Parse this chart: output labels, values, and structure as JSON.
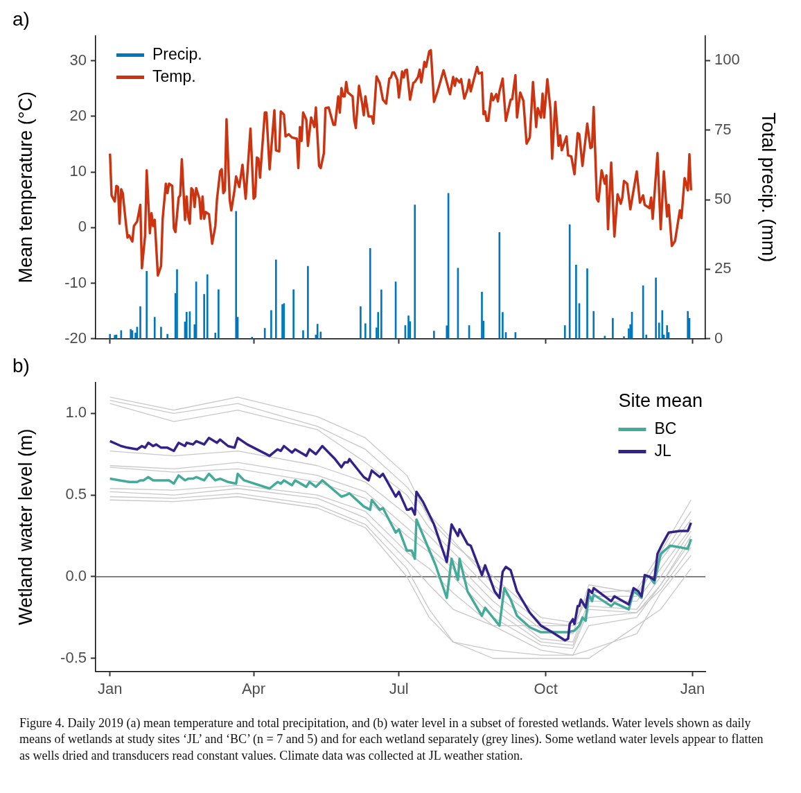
{
  "chart_data": [
    {
      "type": "line",
      "title": "a)",
      "ylabel": "Mean temperature (°C)",
      "y2label": "Total precip. (mm)",
      "xlim": [
        "2018-12-23",
        "2020-01-09"
      ],
      "xticks": [
        {
          "value": "2019-01-01",
          "label": null
        },
        {
          "value": "2019-04-01",
          "label": null
        },
        {
          "value": "2019-07-01",
          "label": null
        },
        {
          "value": "2019-10-01",
          "label": null
        },
        {
          "value": "2020-01-01",
          "label": null
        }
      ],
      "ylim": [
        -20,
        34.5
      ],
      "yticks": [
        -20,
        -10,
        0,
        10,
        20,
        30
      ],
      "y2lim": [
        0,
        108.9
      ],
      "y2ticks": [
        0,
        25,
        50,
        75,
        100
      ],
      "tick_labels": "y",
      "legend": "top left",
      "marker": "none",
      "line_style": "solid",
      "series": [
        {
          "name": "Precip.",
          "type": "bar",
          "axis": "y2",
          "color": "#0077bb",
          "x": [
            "2019-01-01",
            "2019-01-04",
            "2019-01-05",
            "2019-01-08",
            "2019-01-14",
            "2019-01-15",
            "2019-01-17",
            "2019-01-18",
            "2019-01-20",
            "2019-01-24",
            "2019-01-29",
            "2019-02-02",
            "2019-02-06",
            "2019-02-11",
            "2019-02-12",
            "2019-02-17",
            "2019-02-18",
            "2019-02-20",
            "2019-02-23",
            "2019-02-24",
            "2019-03-01",
            "2019-03-03",
            "2019-03-08",
            "2019-03-10",
            "2019-03-21",
            "2019-03-22",
            "2019-03-31",
            "2019-04-08",
            "2019-04-12",
            "2019-04-15",
            "2019-04-19",
            "2019-04-20",
            "2019-04-26",
            "2019-05-02",
            "2019-05-05",
            "2019-05-10",
            "2019-05-11",
            "2019-05-13",
            "2019-06-07",
            "2019-06-10",
            "2019-06-13",
            "2019-06-17",
            "2019-06-18",
            "2019-06-20",
            "2019-06-29",
            "2019-07-05",
            "2019-07-07",
            "2019-07-08",
            "2019-07-11",
            "2019-07-23",
            "2019-07-31",
            "2019-08-01",
            "2019-08-07",
            "2019-08-14",
            "2019-08-22",
            "2019-08-23",
            "2019-09-02",
            "2019-09-04",
            "2019-09-06",
            "2019-09-12",
            "2019-10-13",
            "2019-10-16",
            "2019-10-20",
            "2019-10-22",
            "2019-10-27",
            "2019-10-31",
            "2019-11-07",
            "2019-11-12",
            "2019-11-19",
            "2019-11-22",
            "2019-11-23",
            "2019-11-24",
            "2019-12-01",
            "2019-12-03",
            "2019-12-09",
            "2019-12-11",
            "2019-12-13",
            "2019-12-14",
            "2019-12-16",
            "2019-12-17",
            "2019-12-29",
            "2019-12-30"
          ],
          "values": [
            1.7,
            1.3,
            1.4,
            3.0,
            3.4,
            3.0,
            2.1,
            4.2,
            11.6,
            24.3,
            7.8,
            4.2,
            1.7,
            16.3,
            24.9,
            6.1,
            9.6,
            9.8,
            5.1,
            20.5,
            16.0,
            23.1,
            2.1,
            17.7,
            45.8,
            7.8,
            0.6,
            3.8,
            10.2,
            28.4,
            12.3,
            12.7,
            17.7,
            3.0,
            26.1,
            1.4,
            5.3,
            2.5,
            11.6,
            5.5,
            32.5,
            4.0,
            9.5,
            17.6,
            20.5,
            4.8,
            8.3,
            6.2,
            48.1,
            2.8,
            4.7,
            52.3,
            25.4,
            4.8,
            16.8,
            6.4,
            38.2,
            9.5,
            2.3,
            2.3,
            4.8,
            41.0,
            26.5,
            12.7,
            25.2,
            9.9,
            1.0,
            7.4,
            0.8,
            3.6,
            5.1,
            9.6,
            19.1,
            1.4,
            21.9,
            5.7,
            10.2,
            1.4,
            4.8,
            2.3,
            9.9,
            7.4
          ]
        },
        {
          "name": "Temp.",
          "color": "#cc3311",
          "x": [
            "2019-01-01",
            "2019-01-02",
            "2019-01-04",
            "2019-01-05",
            "2019-01-06",
            "2019-01-07",
            "2019-01-08",
            "2019-01-09",
            "2019-01-11",
            "2019-01-12",
            "2019-01-13",
            "2019-01-15",
            "2019-01-16",
            "2019-01-18",
            "2019-01-20",
            "2019-01-21",
            "2019-01-23",
            "2019-01-24",
            "2019-01-26",
            "2019-01-27",
            "2019-01-28",
            "2019-01-29",
            "2019-01-31",
            "2019-02-02",
            "2019-02-03",
            "2019-02-05",
            "2019-02-06",
            "2019-02-07",
            "2019-02-09",
            "2019-02-10",
            "2019-02-11",
            "2019-02-13",
            "2019-02-14",
            "2019-02-15",
            "2019-02-17",
            "2019-02-18",
            "2019-02-19",
            "2019-02-20",
            "2019-02-21",
            "2019-02-22",
            "2019-02-23",
            "2019-02-24",
            "2019-02-26",
            "2019-02-27",
            "2019-02-28",
            "2019-03-01",
            "2019-03-02",
            "2019-03-04",
            "2019-03-06",
            "2019-03-08",
            "2019-03-09",
            "2019-03-11",
            "2019-03-12",
            "2019-03-13",
            "2019-03-14",
            "2019-03-15",
            "2019-03-17",
            "2019-03-18",
            "2019-03-20",
            "2019-03-21",
            "2019-03-23",
            "2019-03-25",
            "2019-03-27",
            "2019-03-30",
            "2019-04-01",
            "2019-04-02",
            "2019-04-03",
            "2019-04-04",
            "2019-04-05",
            "2019-04-08",
            "2019-04-09",
            "2019-04-11",
            "2019-04-14",
            "2019-04-15",
            "2019-04-17",
            "2019-04-18",
            "2019-04-20",
            "2019-04-21",
            "2019-04-23",
            "2019-04-25",
            "2019-04-28",
            "2019-04-29",
            "2019-04-30",
            "2019-05-01",
            "2019-05-02",
            "2019-05-04",
            "2019-05-05",
            "2019-05-07",
            "2019-05-09",
            "2019-05-10",
            "2019-05-12",
            "2019-05-13",
            "2019-05-15",
            "2019-05-16",
            "2019-05-18",
            "2019-05-21",
            "2019-05-22",
            "2019-05-24",
            "2019-05-25",
            "2019-05-26",
            "2019-05-27",
            "2019-05-28",
            "2019-05-29",
            "2019-05-30",
            "2019-06-02",
            "2019-06-03",
            "2019-06-04",
            "2019-06-06",
            "2019-06-08",
            "2019-06-09",
            "2019-06-10",
            "2019-06-12",
            "2019-06-14",
            "2019-06-15",
            "2019-06-17",
            "2019-06-19",
            "2019-06-21",
            "2019-06-23",
            "2019-06-25",
            "2019-06-26",
            "2019-06-27",
            "2019-06-28",
            "2019-06-30",
            "2019-07-01",
            "2019-07-03",
            "2019-07-04",
            "2019-07-05",
            "2019-07-06",
            "2019-07-08",
            "2019-07-10",
            "2019-07-11",
            "2019-07-13",
            "2019-07-14",
            "2019-07-15",
            "2019-07-17",
            "2019-07-18",
            "2019-07-20",
            "2019-07-21",
            "2019-07-23",
            "2019-07-25",
            "2019-07-29",
            "2019-08-02",
            "2019-08-04",
            "2019-08-05",
            "2019-08-06",
            "2019-08-08",
            "2019-08-09",
            "2019-08-11",
            "2019-08-13",
            "2019-08-14",
            "2019-08-15",
            "2019-08-19",
            "2019-08-20",
            "2019-08-22",
            "2019-08-23",
            "2019-08-24",
            "2019-08-25",
            "2019-08-26",
            "2019-08-28",
            "2019-08-29",
            "2019-08-31",
            "2019-09-01",
            "2019-09-02",
            "2019-09-04",
            "2019-09-06",
            "2019-09-09",
            "2019-09-10",
            "2019-09-12",
            "2019-09-13",
            "2019-09-15",
            "2019-09-17",
            "2019-09-19",
            "2019-09-21",
            "2019-09-23",
            "2019-09-25",
            "2019-09-26",
            "2019-09-28",
            "2019-09-29",
            "2019-09-30",
            "2019-10-02",
            "2019-10-04",
            "2019-10-05",
            "2019-10-07",
            "2019-10-09",
            "2019-10-10",
            "2019-10-11",
            "2019-10-14",
            "2019-10-15",
            "2019-10-17",
            "2019-10-19",
            "2019-10-21",
            "2019-10-22",
            "2019-10-24",
            "2019-10-27",
            "2019-10-29",
            "2019-10-30",
            "2019-10-31",
            "2019-11-02",
            "2019-11-03",
            "2019-11-05",
            "2019-11-07",
            "2019-11-08",
            "2019-11-09",
            "2019-11-11",
            "2019-11-13",
            "2019-11-15",
            "2019-11-17",
            "2019-11-18",
            "2019-11-19",
            "2019-11-21",
            "2019-11-23",
            "2019-11-25",
            "2019-11-27",
            "2019-11-29",
            "2019-12-01",
            "2019-12-02",
            "2019-12-05",
            "2019-12-06",
            "2019-12-07",
            "2019-12-10",
            "2019-12-12",
            "2019-12-14",
            "2019-12-16",
            "2019-12-17",
            "2019-12-19",
            "2019-12-21",
            "2019-12-24",
            "2019-12-25",
            "2019-12-27",
            "2019-12-29",
            "2019-12-30",
            "2019-12-31"
          ],
          "values": [
            13.3,
            5.8,
            4.7,
            7.5,
            7.3,
            0.7,
            6.9,
            6.2,
            0.7,
            -1.8,
            -1.4,
            -2.5,
            0.3,
            1.1,
            4.1,
            -7.3,
            -1.4,
            10.3,
            -1.0,
            2.6,
            0.3,
            1.4,
            -8.6,
            -6.9,
            1.6,
            7.9,
            6.2,
            7.9,
            7.5,
            -0.1,
            -0.8,
            5.4,
            5.8,
            12.3,
            1.4,
            5.6,
            2.0,
            0.7,
            7.1,
            6.7,
            3.7,
            7.1,
            5.2,
            1.6,
            5.6,
            1.6,
            2.8,
            2.4,
            -2.9,
            0.3,
            5.0,
            10.1,
            10.5,
            6.2,
            6.7,
            19.5,
            5.0,
            3.1,
            6.7,
            9.2,
            7.3,
            11.3,
            5.2,
            17.8,
            5.2,
            5.6,
            12.6,
            12.4,
            9.0,
            20.7,
            20.7,
            10.5,
            21.1,
            13.9,
            13.7,
            20.9,
            20.3,
            16.4,
            16.8,
            16.2,
            16.0,
            10.7,
            18.1,
            15.6,
            20.7,
            19.4,
            14.7,
            19.8,
            18.1,
            21.6,
            11.1,
            10.7,
            13.4,
            21.5,
            21.6,
            18.5,
            18.5,
            23.6,
            20.7,
            25.1,
            23.6,
            23.6,
            26.2,
            24.3,
            23.6,
            19.4,
            17.9,
            25.5,
            22.3,
            20.2,
            23.6,
            20.0,
            20.0,
            18.7,
            27.2,
            26.0,
            23.0,
            22.3,
            26.8,
            27.0,
            27.9,
            27.9,
            26.6,
            23.4,
            28.1,
            27.0,
            28.3,
            28.4,
            23.0,
            26.0,
            26.2,
            27.1,
            28.4,
            26.1,
            29.8,
            28.9,
            31.7,
            31.9,
            22.6,
            24.3,
            28.3,
            24.0,
            27.1,
            25.5,
            26.8,
            26.1,
            26.7,
            23.2,
            24.9,
            26.6,
            24.5,
            28.9,
            27.7,
            27.9,
            20.4,
            20.9,
            19.2,
            19.2,
            24.1,
            22.9,
            24.0,
            22.7,
            24.5,
            26.8,
            19.2,
            23.0,
            23.1,
            27.4,
            19.8,
            24.3,
            22.8,
            15.1,
            16.2,
            26.2,
            18.1,
            21.5,
            19.8,
            24.1,
            19.8,
            26.7,
            21.1,
            12.4,
            22.6,
            14.7,
            16.6,
            13.9,
            16.4,
            13.0,
            12.8,
            9.6,
            17.0,
            16.8,
            11.1,
            18.7,
            14.3,
            14.5,
            21.7,
            5.2,
            4.7,
            10.3,
            7.9,
            9.4,
            -0.3,
            11.7,
            -1.6,
            6.0,
            4.3,
            5.4,
            8.4,
            7.9,
            3.3,
            6.7,
            10.1,
            4.5,
            5.8,
            4.1,
            3.5,
            5.4,
            1.6,
            13.4,
            -0.3,
            10.1,
            2.0,
            4.1,
            -3.3,
            -2.4,
            3.1,
            1.7,
            8.9,
            6.7,
            13.2,
            6.7
          ]
        }
      ]
    },
    {
      "type": "line",
      "title": "b)",
      "ylabel": "Wetland water level (m)",
      "legend_title": "Site mean",
      "legend": "top right",
      "marker": "none",
      "line_style": "solid",
      "xlim": [
        "2018-12-23",
        "2020-01-09"
      ],
      "xticks": [
        {
          "value": "2019-01-01",
          "label": "Jan"
        },
        {
          "value": "2019-04-01",
          "label": "Apr"
        },
        {
          "value": "2019-07-01",
          "label": "Jul"
        },
        {
          "value": "2019-10-01",
          "label": "Oct"
        },
        {
          "value": "2020-01-01",
          "label": "Jan"
        }
      ],
      "ylim": [
        -0.58,
        1.19
      ],
      "yticks": [
        -0.5,
        {
          "value": 0,
          "label": "0.0"
        },
        0.5,
        {
          "value": 1,
          "label": "1.0"
        }
      ],
      "ref_lines": [
        {
          "axis": "y",
          "value": 0,
          "color": "#808080"
        }
      ],
      "annotations": [
        "Figure 4. Daily 2019 (a) mean temperature and total precipitation, and (b) water level in a subset of forested wetlands. Water levels shown as daily means of wetlands at study sites ‘JL’ and ‘BC’ (n = 7 and 5) and for each wetland separately (grey lines). Some wetland water levels appear to flatten as wells dried and transducers read constant values. Climate data was collected at JL weather station."
      ],
      "x": [
        "2019-01-01",
        "2019-02-10",
        "2019-03-22",
        "2019-05-11",
        "2019-06-10",
        "2019-07-06",
        "2019-07-20",
        "2019-08-04",
        "2019-08-29",
        "2019-09-28",
        "2019-10-18",
        "2019-10-28",
        "2019-11-27",
        "2019-12-12",
        "2019-12-31"
      ],
      "series": [
        {
          "color": "#c8c8c8",
          "values": [
            1.1,
            1.02,
            1.1,
            0.98,
            0.85,
            0.62,
            0.35,
            0.2,
            0.0,
            -0.25,
            -0.28,
            -0.1,
            -0.08,
            0.15,
            0.47
          ]
        },
        {
          "color": "#c8c8c8",
          "values": [
            1.08,
            1.0,
            1.06,
            0.92,
            0.78,
            0.55,
            0.38,
            0.22,
            -0.05,
            -0.28,
            -0.3,
            -0.12,
            -0.12,
            0.12,
            0.4
          ]
        },
        {
          "color": "#c8c8c8",
          "values": [
            1.06,
            0.95,
            1.02,
            0.9,
            0.7,
            0.5,
            0.3,
            0.15,
            -0.1,
            -0.32,
            -0.35,
            -0.05,
            -0.1,
            0.1,
            0.35
          ]
        },
        {
          "color": "#c8c8c8",
          "values": [
            0.77,
            0.74,
            0.77,
            0.68,
            0.58,
            0.38,
            0.25,
            0.1,
            -0.15,
            -0.38,
            -0.4,
            -0.15,
            -0.15,
            0.05,
            0.3
          ]
        },
        {
          "color": "#c8c8c8",
          "values": [
            0.68,
            0.66,
            0.7,
            0.62,
            0.52,
            0.3,
            0.18,
            0.05,
            -0.2,
            -0.4,
            -0.42,
            -0.18,
            -0.2,
            0.0,
            0.28
          ]
        },
        {
          "color": "#c8c8c8",
          "values": [
            0.67,
            0.64,
            0.66,
            0.58,
            0.48,
            0.25,
            0.15,
            0.0,
            -0.25,
            -0.42,
            -0.44,
            -0.2,
            -0.22,
            -0.05,
            0.25
          ]
        },
        {
          "color": "#c8c8c8",
          "values": [
            0.54,
            0.53,
            0.56,
            0.5,
            0.4,
            0.15,
            0.05,
            -0.1,
            -0.3,
            -0.45,
            -0.48,
            -0.3,
            -0.25,
            -0.05,
            0.22
          ]
        },
        {
          "color": "#c8c8c8",
          "values": [
            0.52,
            0.5,
            0.54,
            0.48,
            0.36,
            0.1,
            -0.05,
            -0.2,
            -0.3,
            -0.3,
            -0.3,
            -0.25,
            -0.22,
            -0.08,
            0.18
          ]
        },
        {
          "color": "#c8c8c8",
          "values": [
            0.49,
            0.48,
            0.51,
            0.44,
            0.32,
            0.05,
            -0.2,
            -0.4,
            -0.45,
            -0.48,
            -0.48,
            -0.45,
            -0.35,
            -0.1,
            0.13
          ]
        },
        {
          "color": "#c8c8c8",
          "values": [
            0.47,
            0.46,
            0.49,
            0.42,
            0.3,
            0.0,
            -0.25,
            -0.4,
            -0.5,
            -0.5,
            -0.5,
            -0.5,
            -0.3,
            -0.2,
            0.05
          ]
        },
        {
          "name": "BC",
          "color": "#44aa99",
          "x": [
            "2019-01-01",
            "2019-01-07",
            "2019-01-13",
            "2019-01-18",
            "2019-01-20",
            "2019-01-22",
            "2019-01-25",
            "2019-01-28",
            "2019-01-30",
            "2019-02-02",
            "2019-02-07",
            "2019-02-10",
            "2019-02-13",
            "2019-02-17",
            "2019-02-19",
            "2019-02-22",
            "2019-02-24",
            "2019-03-01",
            "2019-03-04",
            "2019-03-08",
            "2019-03-11",
            "2019-03-16",
            "2019-03-21",
            "2019-03-22",
            "2019-03-26",
            "2019-04-11",
            "2019-04-16",
            "2019-04-18",
            "2019-04-20",
            "2019-04-25",
            "2019-04-27",
            "2019-05-04",
            "2019-05-06",
            "2019-05-10",
            "2019-05-14",
            "2019-05-26",
            "2019-05-29",
            "2019-05-31",
            "2019-06-09",
            "2019-06-13",
            "2019-06-14",
            "2019-06-19",
            "2019-06-21",
            "2019-06-29",
            "2019-07-01",
            "2019-07-06",
            "2019-07-09",
            "2019-07-11",
            "2019-07-12",
            "2019-07-24",
            "2019-07-31",
            "2019-08-03",
            "2019-08-07",
            "2019-08-08",
            "2019-08-13",
            "2019-08-22",
            "2019-08-24",
            "2019-09-02",
            "2019-09-05",
            "2019-09-09",
            "2019-09-13",
            "2019-09-21",
            "2019-09-28",
            "2019-10-15",
            "2019-10-19",
            "2019-10-22",
            "2019-10-24",
            "2019-10-26",
            "2019-10-28",
            "2019-10-30",
            "2019-10-31",
            "2019-11-11",
            "2019-11-13",
            "2019-11-22",
            "2019-11-25",
            "2019-11-28",
            "2019-11-30",
            "2019-12-02",
            "2019-12-05",
            "2019-12-08",
            "2019-12-12",
            "2019-12-18",
            "2019-12-24",
            "2019-12-29",
            "2019-12-31"
          ],
          "values": [
            0.6,
            0.59,
            0.58,
            0.58,
            0.59,
            0.59,
            0.61,
            0.59,
            0.59,
            0.59,
            0.59,
            0.57,
            0.62,
            0.59,
            0.6,
            0.6,
            0.61,
            0.59,
            0.63,
            0.59,
            0.6,
            0.58,
            0.57,
            0.63,
            0.59,
            0.54,
            0.58,
            0.57,
            0.59,
            0.56,
            0.59,
            0.55,
            0.58,
            0.55,
            0.59,
            0.49,
            0.5,
            0.51,
            0.43,
            0.41,
            0.47,
            0.41,
            0.42,
            0.27,
            0.29,
            0.16,
            0.16,
            0.11,
            0.35,
            0.07,
            -0.13,
            0.11,
            -0.02,
            0.11,
            -0.09,
            -0.24,
            -0.19,
            -0.3,
            -0.07,
            -0.14,
            -0.24,
            -0.31,
            -0.34,
            -0.34,
            -0.33,
            -0.3,
            -0.25,
            -0.27,
            -0.11,
            -0.15,
            -0.11,
            -0.18,
            -0.16,
            -0.2,
            -0.09,
            -0.11,
            -0.13,
            0.0,
            0.0,
            -0.04,
            0.14,
            0.19,
            0.18,
            0.17,
            0.23
          ]
        },
        {
          "name": "JL",
          "color": "#332288",
          "x": [
            "2019-01-01",
            "2019-01-08",
            "2019-01-12",
            "2019-01-18",
            "2019-01-21",
            "2019-01-23",
            "2019-01-25",
            "2019-01-28",
            "2019-01-30",
            "2019-02-02",
            "2019-02-06",
            "2019-02-10",
            "2019-02-13",
            "2019-02-17",
            "2019-02-18",
            "2019-02-22",
            "2019-02-24",
            "2019-03-01",
            "2019-03-04",
            "2019-03-09",
            "2019-03-11",
            "2019-03-16",
            "2019-03-20",
            "2019-03-22",
            "2019-03-28",
            "2019-04-11",
            "2019-04-16",
            "2019-04-18",
            "2019-04-20",
            "2019-04-25",
            "2019-04-27",
            "2019-05-04",
            "2019-05-06",
            "2019-05-10",
            "2019-05-14",
            "2019-05-22",
            "2019-05-26",
            "2019-05-28",
            "2019-05-30",
            "2019-05-31",
            "2019-06-09",
            "2019-06-12",
            "2019-06-14",
            "2019-06-19",
            "2019-06-21",
            "2019-06-29",
            "2019-07-01",
            "2019-07-06",
            "2019-07-07",
            "2019-07-09",
            "2019-07-11",
            "2019-07-12",
            "2019-07-16",
            "2019-07-23",
            "2019-07-31",
            "2019-08-03",
            "2019-08-07",
            "2019-08-08",
            "2019-08-13",
            "2019-08-15",
            "2019-08-22",
            "2019-08-24",
            "2019-08-30",
            "2019-09-02",
            "2019-09-04",
            "2019-09-06",
            "2019-09-09",
            "2019-09-13",
            "2019-09-21",
            "2019-09-28",
            "2019-10-05",
            "2019-10-13",
            "2019-10-15",
            "2019-10-16",
            "2019-10-18",
            "2019-10-19",
            "2019-10-21",
            "2019-10-22",
            "2019-10-23",
            "2019-10-26",
            "2019-10-28",
            "2019-10-30",
            "2019-10-31",
            "2019-11-11",
            "2019-11-13",
            "2019-11-22",
            "2019-11-25",
            "2019-11-28",
            "2019-11-30",
            "2019-12-02",
            "2019-12-05",
            "2019-12-08",
            "2019-12-10",
            "2019-12-13",
            "2019-12-17",
            "2019-12-24",
            "2019-12-29",
            "2019-12-31"
          ],
          "values": [
            0.83,
            0.8,
            0.79,
            0.78,
            0.8,
            0.79,
            0.82,
            0.8,
            0.81,
            0.79,
            0.79,
            0.77,
            0.82,
            0.8,
            0.82,
            0.81,
            0.83,
            0.81,
            0.85,
            0.82,
            0.84,
            0.8,
            0.79,
            0.85,
            0.81,
            0.74,
            0.78,
            0.77,
            0.8,
            0.76,
            0.78,
            0.74,
            0.78,
            0.75,
            0.8,
            0.72,
            0.67,
            0.7,
            0.7,
            0.72,
            0.61,
            0.59,
            0.65,
            0.61,
            0.63,
            0.49,
            0.52,
            0.41,
            0.41,
            0.42,
            0.38,
            0.52,
            0.46,
            0.32,
            0.09,
            0.32,
            0.25,
            0.29,
            0.2,
            0.19,
            0.01,
            0.07,
            -0.09,
            -0.13,
            0.03,
            0.06,
            0.04,
            -0.09,
            -0.22,
            -0.3,
            -0.34,
            -0.39,
            -0.38,
            -0.29,
            -0.26,
            -0.29,
            -0.18,
            -0.18,
            -0.14,
            -0.19,
            -0.08,
            -0.1,
            -0.07,
            -0.15,
            -0.12,
            -0.17,
            -0.07,
            -0.09,
            -0.12,
            0.01,
            0.0,
            -0.02,
            0.14,
            0.2,
            0.27,
            0.28,
            0.28,
            0.33
          ]
        }
      ]
    }
  ]
}
